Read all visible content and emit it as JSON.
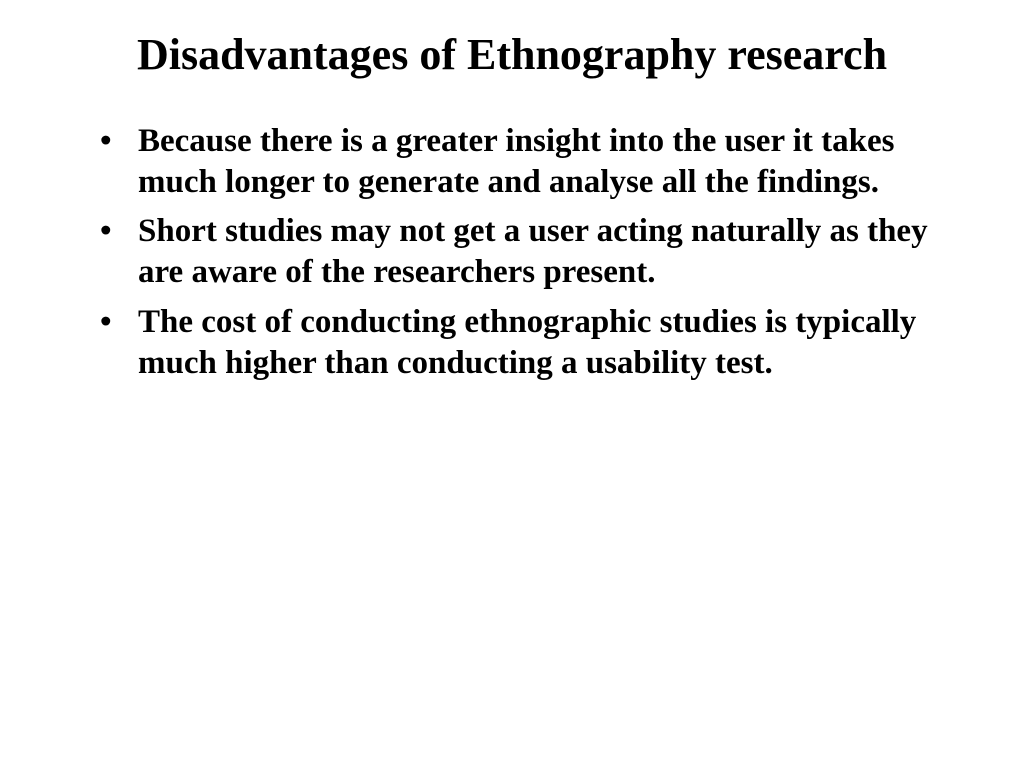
{
  "slide": {
    "title": "Disadvantages of Ethnography research",
    "title_fontsize": 44,
    "title_fontweight": "bold",
    "background_color": "#ffffff",
    "text_color": "#000000",
    "font_family": "Times New Roman",
    "bullets": [
      {
        "text": "Because there is a greater insight into the user it takes much longer to generate and analyse all the findings."
      },
      {
        "text": "Short studies may not get a user acting naturally as they are aware of the researchers present."
      },
      {
        "text": "The cost of conducting ethnographic studies is typically much higher than conducting a usability test."
      }
    ],
    "bullet_fontsize": 33,
    "bullet_fontweight": "bold"
  }
}
